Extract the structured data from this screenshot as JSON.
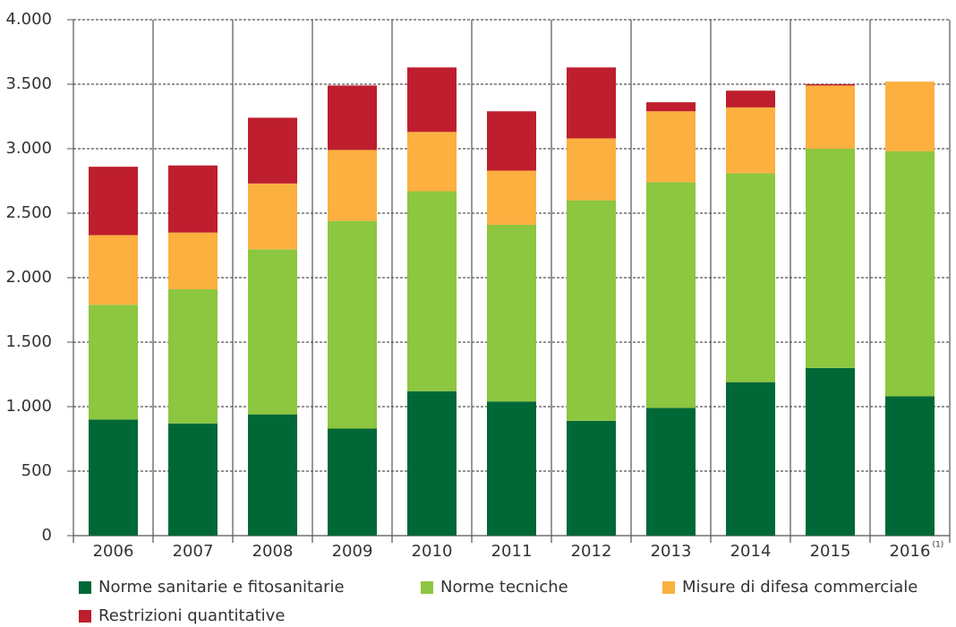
{
  "chart_data": {
    "type": "stacked_bar",
    "categories": [
      "2006",
      "2007",
      "2008",
      "2009",
      "2010",
      "2011",
      "2012",
      "2013",
      "2014",
      "2015",
      "2016"
    ],
    "annotation": "(1)",
    "series": [
      {
        "name": "Norme sanitarie e fitosanitarie",
        "color": "#006837",
        "values": [
          900,
          870,
          940,
          830,
          1120,
          1040,
          890,
          990,
          1190,
          1300,
          1080
        ]
      },
      {
        "name": "Norme tecniche",
        "color": "#8dc63f",
        "values": [
          890,
          1040,
          1280,
          1610,
          1550,
          1370,
          1710,
          1750,
          1620,
          1700,
          1900
        ]
      },
      {
        "name": "Misure di difesa commerciale",
        "color": "#fbb040",
        "values": [
          540,
          440,
          510,
          550,
          460,
          420,
          480,
          550,
          510,
          490,
          540
        ]
      },
      {
        "name": "Restrizioni quantitative",
        "color": "#be1e2d",
        "values": [
          530,
          520,
          510,
          500,
          500,
          460,
          550,
          70,
          130,
          10,
          0
        ]
      }
    ],
    "ylim": [
      0,
      4000
    ],
    "yticks": [
      0,
      500,
      {
        "value": 1000,
        "label": "1.000"
      },
      {
        "value": 1500,
        "label": "1.500"
      },
      {
        "value": 2000,
        "label": "2.000"
      },
      {
        "value": 2500,
        "label": "2.500"
      },
      {
        "value": 3000,
        "label": "3.000"
      },
      {
        "value": 3500,
        "label": "3.500"
      },
      {
        "value": 4000,
        "label": "4.000"
      }
    ],
    "grid": true
  }
}
